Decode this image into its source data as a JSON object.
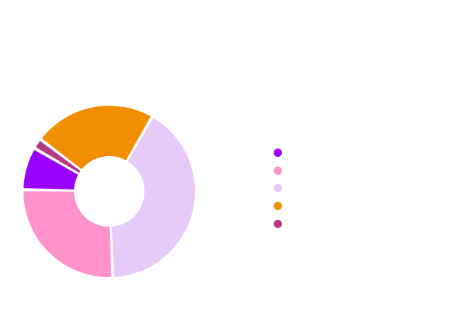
{
  "chart_data": {
    "type": "pie",
    "variant": "donut",
    "title": "",
    "legend_position": "right",
    "slices": [
      {
        "name": "",
        "value": 8,
        "color": "#9a00ff"
      },
      {
        "name": "",
        "value": 26,
        "color": "#ff91cb"
      },
      {
        "name": "",
        "value": 41,
        "color": "#e6caf8"
      },
      {
        "name": "",
        "value": 23,
        "color": "#f28f00"
      },
      {
        "name": "",
        "value": 2,
        "color": "#b43a84"
      }
    ]
  }
}
